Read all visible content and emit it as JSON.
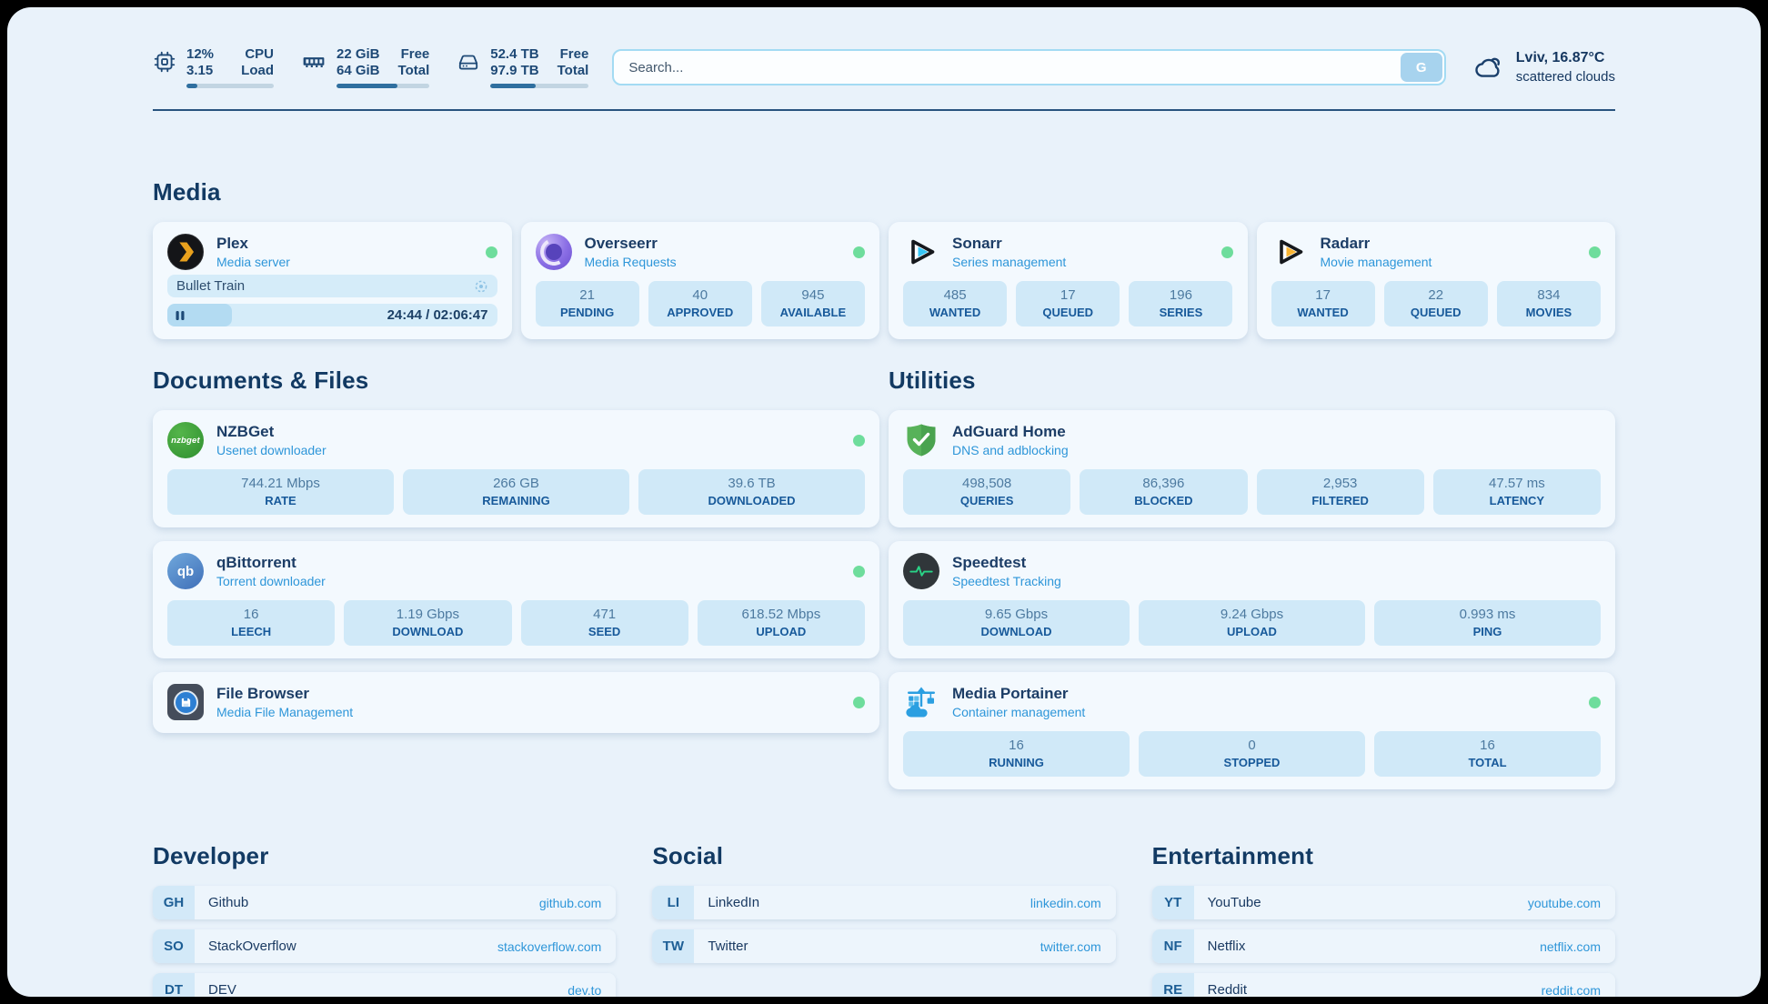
{
  "topbar": {
    "cpu": {
      "values": [
        "12%",
        "3.15"
      ],
      "labels": [
        "CPU",
        "Load"
      ],
      "progress_pct": 12
    },
    "memory": {
      "values": [
        "22 GiB",
        "64 GiB"
      ],
      "labels": [
        "Free",
        "Total"
      ],
      "progress_pct": 66
    },
    "disk": {
      "values": [
        "52.4 TB",
        "97.9 TB"
      ],
      "labels": [
        "Free",
        "Total"
      ],
      "progress_pct": 46
    },
    "search": {
      "placeholder": "Search...",
      "button_label": "G"
    },
    "weather": {
      "headline": "Lviv, 16.87°C",
      "condition": "scattered clouds"
    }
  },
  "media": {
    "section_title": "Media",
    "plex": {
      "title": "Plex",
      "subtitle": "Media server",
      "now_playing": "Bullet Train",
      "time": "24:44 / 02:06:47",
      "progress_pct": 19.5
    },
    "overseerr": {
      "title": "Overseerr",
      "subtitle": "Media Requests",
      "stats": [
        {
          "value": "21",
          "label": "PENDING"
        },
        {
          "value": "40",
          "label": "APPROVED"
        },
        {
          "value": "945",
          "label": "AVAILABLE"
        }
      ]
    },
    "sonarr": {
      "title": "Sonarr",
      "subtitle": "Series management",
      "stats": [
        {
          "value": "485",
          "label": "WANTED"
        },
        {
          "value": "17",
          "label": "QUEUED"
        },
        {
          "value": "196",
          "label": "SERIES"
        }
      ]
    },
    "radarr": {
      "title": "Radarr",
      "subtitle": "Movie management",
      "stats": [
        {
          "value": "17",
          "label": "WANTED"
        },
        {
          "value": "22",
          "label": "QUEUED"
        },
        {
          "value": "834",
          "label": "MOVIES"
        }
      ]
    }
  },
  "documents": {
    "section_title": "Documents & Files",
    "nzbget": {
      "title": "NZBGet",
      "subtitle": "Usenet downloader",
      "icon_text": "nzbget",
      "stats": [
        {
          "value": "744.21 Mbps",
          "label": "RATE"
        },
        {
          "value": "266 GB",
          "label": "REMAINING"
        },
        {
          "value": "39.6 TB",
          "label": "DOWNLOADED"
        }
      ]
    },
    "qbittorrent": {
      "title": "qBittorrent",
      "subtitle": "Torrent downloader",
      "icon_text": "qb",
      "stats": [
        {
          "value": "16",
          "label": "LEECH"
        },
        {
          "value": "1.19 Gbps",
          "label": "DOWNLOAD"
        },
        {
          "value": "471",
          "label": "SEED"
        },
        {
          "value": "618.52 Mbps",
          "label": "UPLOAD"
        }
      ]
    },
    "filebrowser": {
      "title": "File Browser",
      "subtitle": "Media File Management"
    }
  },
  "utilities": {
    "section_title": "Utilities",
    "adguard": {
      "title": "AdGuard Home",
      "subtitle": "DNS and adblocking",
      "stats": [
        {
          "value": "498,508",
          "label": "QUERIES"
        },
        {
          "value": "86,396",
          "label": "BLOCKED"
        },
        {
          "value": "2,953",
          "label": "FILTERED"
        },
        {
          "value": "47.57 ms",
          "label": "LATENCY"
        }
      ]
    },
    "speedtest": {
      "title": "Speedtest",
      "subtitle": "Speedtest Tracking",
      "stats": [
        {
          "value": "9.65 Gbps",
          "label": "DOWNLOAD"
        },
        {
          "value": "9.24 Gbps",
          "label": "UPLOAD"
        },
        {
          "value": "0.993 ms",
          "label": "PING"
        }
      ]
    },
    "portainer": {
      "title": "Media Portainer",
      "subtitle": "Container management",
      "stats": [
        {
          "value": "16",
          "label": "RUNNING"
        },
        {
          "value": "0",
          "label": "STOPPED"
        },
        {
          "value": "16",
          "label": "TOTAL"
        }
      ]
    }
  },
  "links": [
    {
      "section_title": "Developer",
      "items": [
        {
          "tag": "GH",
          "name": "Github",
          "url": "github.com"
        },
        {
          "tag": "SO",
          "name": "StackOverflow",
          "url": "stackoverflow.com"
        },
        {
          "tag": "DT",
          "name": "DEV",
          "url": "dev.to"
        }
      ]
    },
    {
      "section_title": "Social",
      "items": [
        {
          "tag": "LI",
          "name": "LinkedIn",
          "url": "linkedin.com"
        },
        {
          "tag": "TW",
          "name": "Twitter",
          "url": "twitter.com"
        }
      ]
    },
    {
      "section_title": "Entertainment",
      "items": [
        {
          "tag": "YT",
          "name": "YouTube",
          "url": "youtube.com"
        },
        {
          "tag": "NF",
          "name": "Netflix",
          "url": "netflix.com"
        },
        {
          "tag": "RE",
          "name": "Reddit",
          "url": "reddit.com"
        }
      ]
    }
  ],
  "colors": {
    "page_bg": "#e9f2fa",
    "card_bg": "#f3f9fe",
    "stat_bg": "#d0e9f8",
    "accent_blue": "#2e96d9",
    "navy": "#16365c",
    "green_dot": "#6edd9c",
    "bar_fill": "#2f6f9f"
  }
}
